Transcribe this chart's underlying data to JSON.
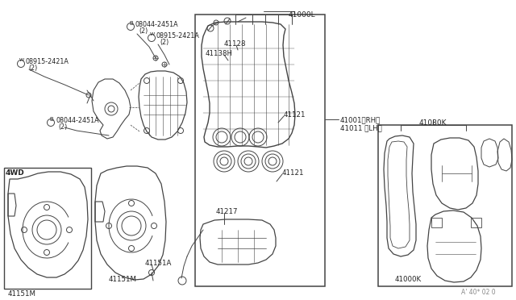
{
  "bg_color": "#ffffff",
  "lc": "#444444",
  "tc": "#222222",
  "labels": {
    "B08044_top": "B)08044-2451A\n   (2)",
    "W08915_top_right": "W)08915-2421A\n   (2)",
    "W08915_left": "W)08915-2421A\n(2)",
    "B08044_bottom": "B)08044-2451A\n   (2)",
    "part_41128": "41128",
    "part_41138H": "41138H",
    "part_41000L": "41000L",
    "part_41121_top": "41121",
    "part_41121_bot": "41121",
    "part_41217": "41217",
    "part_41001RH": "41001〈RH〉",
    "part_41011LH": "41011 〈LH〉",
    "part_41080K": "41080K",
    "part_41000K": "41000K",
    "part_41151M_left": "41151M",
    "part_41151M_mid": "41151M",
    "part_41151A": "41151A",
    "label_4WD": "4WD",
    "watermark": "A' 40* 02 0"
  }
}
